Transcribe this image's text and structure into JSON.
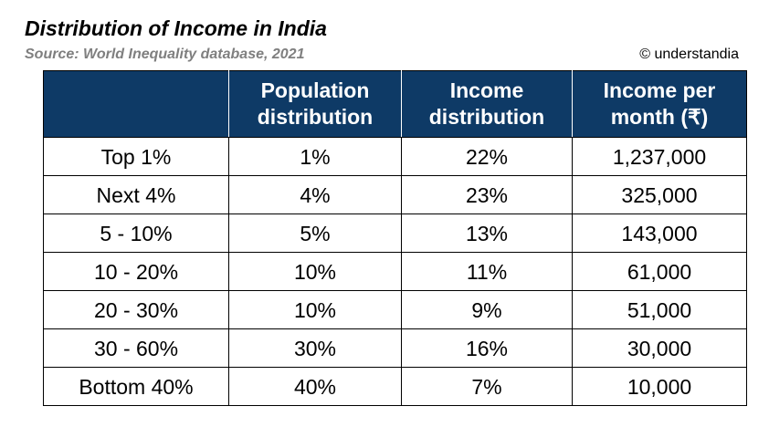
{
  "title": "Distribution of Income in India",
  "source": "Source: World Inequality database, 2021",
  "copyright": "© understandia",
  "chart_data": {
    "type": "table",
    "columns": [
      "",
      "Population distribution",
      "Income distribution",
      "Income per month (₹)"
    ],
    "header_lines": [
      [
        "",
        ""
      ],
      [
        "Population",
        "distribution"
      ],
      [
        "Income",
        "distribution"
      ],
      [
        "Income per",
        "month (₹)"
      ]
    ],
    "rows": [
      [
        "Top 1%",
        "1%",
        "22%",
        "1,237,000"
      ],
      [
        "Next 4%",
        "4%",
        "23%",
        "325,000"
      ],
      [
        "5 - 10%",
        "5%",
        "13%",
        "143,000"
      ],
      [
        "10 - 20%",
        "10%",
        "11%",
        "61,000"
      ],
      [
        "20 - 30%",
        "10%",
        "9%",
        "51,000"
      ],
      [
        "30 - 60%",
        "30%",
        "16%",
        "30,000"
      ],
      [
        "Bottom 40%",
        "40%",
        "7%",
        "10,000"
      ]
    ],
    "header_color": "#0e3a66"
  }
}
